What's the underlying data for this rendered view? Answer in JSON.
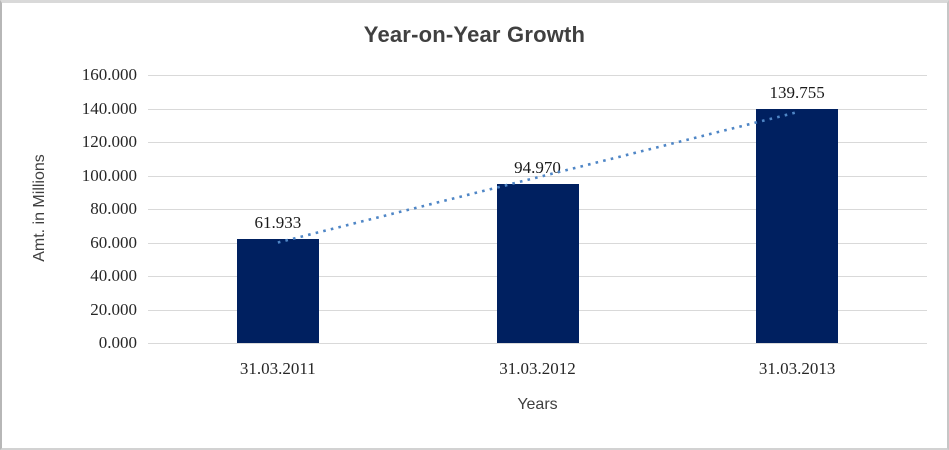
{
  "chart_data": {
    "type": "bar",
    "title": "Year-on-Year Growth",
    "xlabel": "Years",
    "ylabel": "Amt. in Millions",
    "categories": [
      "31.03.2011",
      "31.03.2012",
      "31.03.2013"
    ],
    "values": [
      61.933,
      94.97,
      139.755
    ],
    "data_labels": [
      "61.933",
      "94.970",
      "139.755"
    ],
    "ylim": [
      0,
      160
    ],
    "ytick_step": 20,
    "ytick_labels": [
      "0.000",
      "20.000",
      "40.000",
      "60.000",
      "80.000",
      "100.000",
      "120.000",
      "140.000",
      "160.000"
    ],
    "grid": true,
    "legend": false,
    "trendline": {
      "fit": "linear",
      "style": "dotted",
      "color": "#4f86c6"
    },
    "colors": {
      "bar": "#002060",
      "gridline": "#d9d9d9",
      "title_text": "#404040",
      "axis_title_text": "#404040",
      "tick_text": "#262626",
      "data_label_text": "#1a1a1a",
      "background": "#ffffff",
      "frame_border": "#c6c6c6"
    }
  }
}
